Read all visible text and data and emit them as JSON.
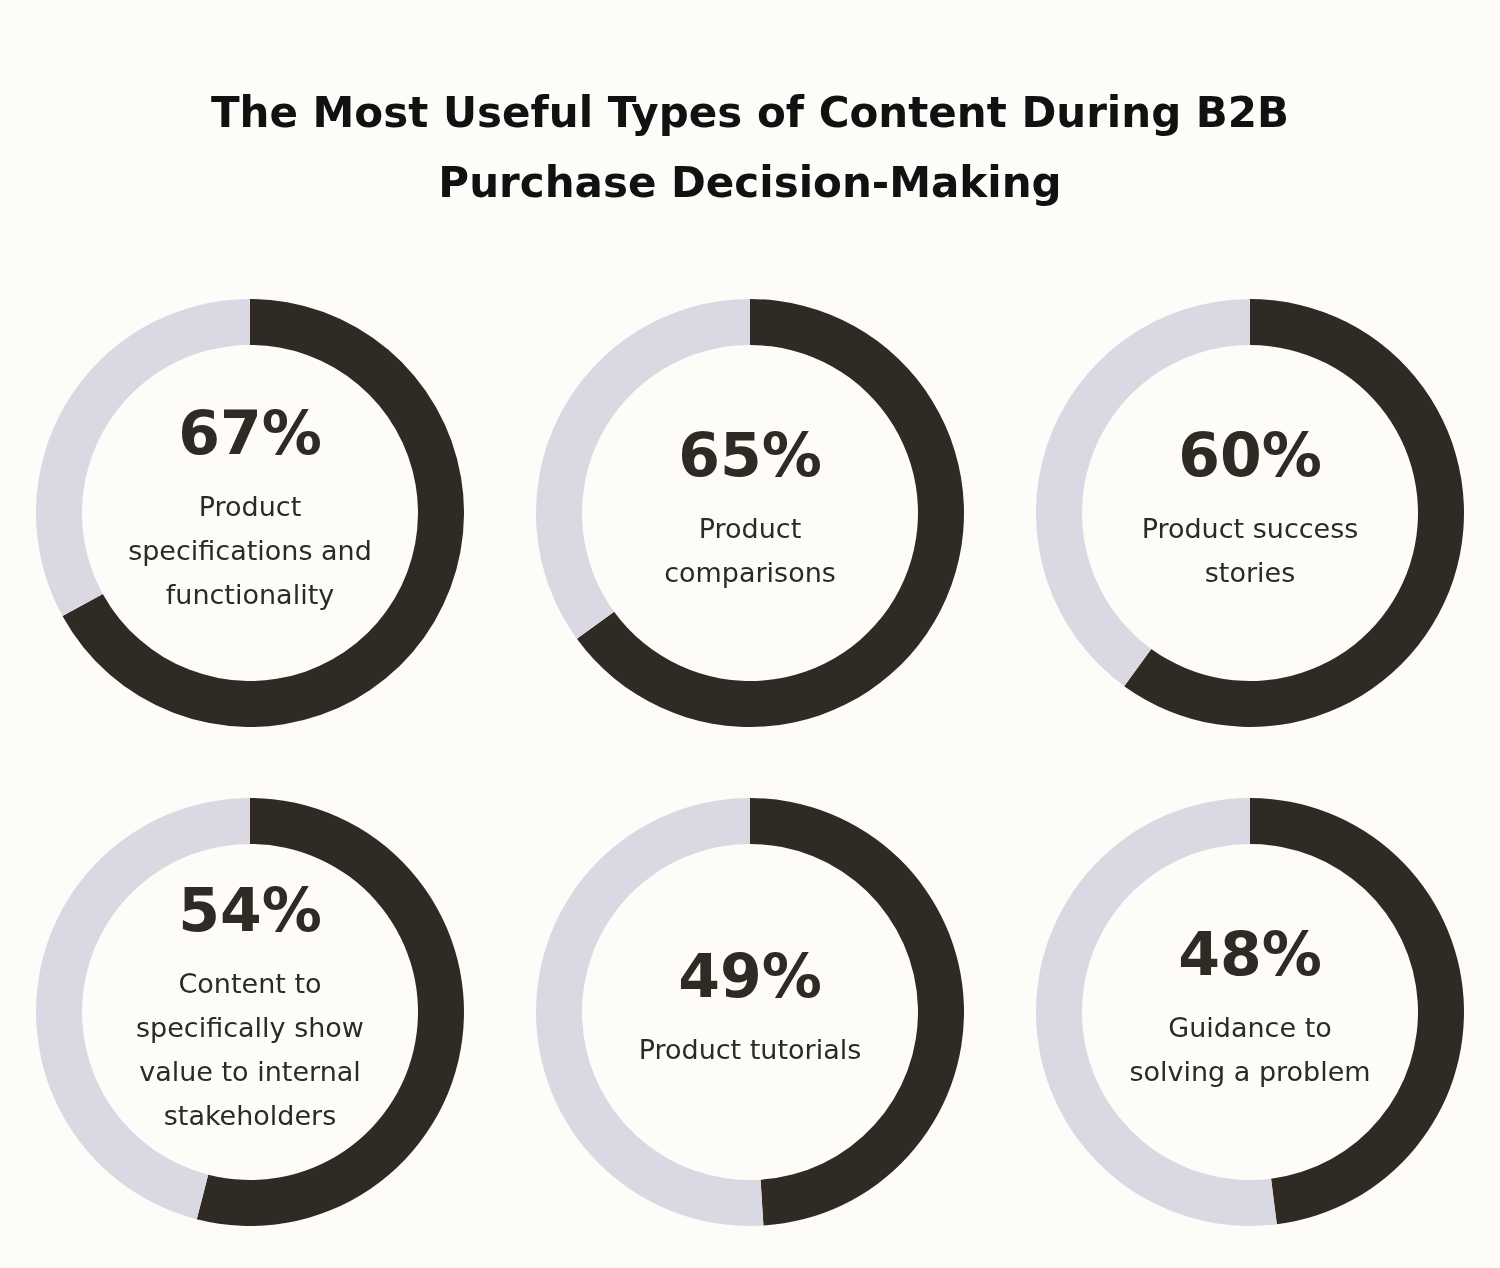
{
  "chart_data": [
    {
      "type": "donut",
      "title": "The Most Useful Types of Content During B2B Purchase Decision-Making",
      "categories": [
        "Product specifications and functionality",
        null
      ],
      "values": [
        67,
        33
      ],
      "colors": [
        "#2f2a24",
        "#d9d8e3"
      ],
      "value_labels": [
        "67%",
        null
      ]
    },
    {
      "type": "donut",
      "categories": [
        "Product comparisons",
        null
      ],
      "values": [
        65,
        35
      ],
      "colors": [
        "#2f2a24",
        "#d9d8e3"
      ],
      "value_labels": [
        "65%",
        null
      ]
    },
    {
      "type": "donut",
      "categories": [
        "Product success stories",
        null
      ],
      "values": [
        60,
        40
      ],
      "colors": [
        "#2f2a24",
        "#d9d8e3"
      ],
      "value_labels": [
        "60%",
        null
      ]
    },
    {
      "type": "donut",
      "categories": [
        "Content to specifically show value to internal stakeholders",
        null
      ],
      "values": [
        54,
        46
      ],
      "colors": [
        "#2f2a24",
        "#d9d8e3"
      ],
      "value_labels": [
        "54%",
        null
      ]
    },
    {
      "type": "donut",
      "categories": [
        "Product tutorials",
        null
      ],
      "values": [
        49,
        51
      ],
      "colors": [
        "#2f2a24",
        "#d9d8e3"
      ],
      "value_labels": [
        "49%",
        null
      ]
    },
    {
      "type": "donut",
      "categories": [
        "Guidance to solving a problem",
        null
      ],
      "values": [
        48,
        52
      ],
      "colors": [
        "#2f2a24",
        "#d9d8e3"
      ],
      "value_labels": [
        "48%",
        null
      ]
    }
  ]
}
